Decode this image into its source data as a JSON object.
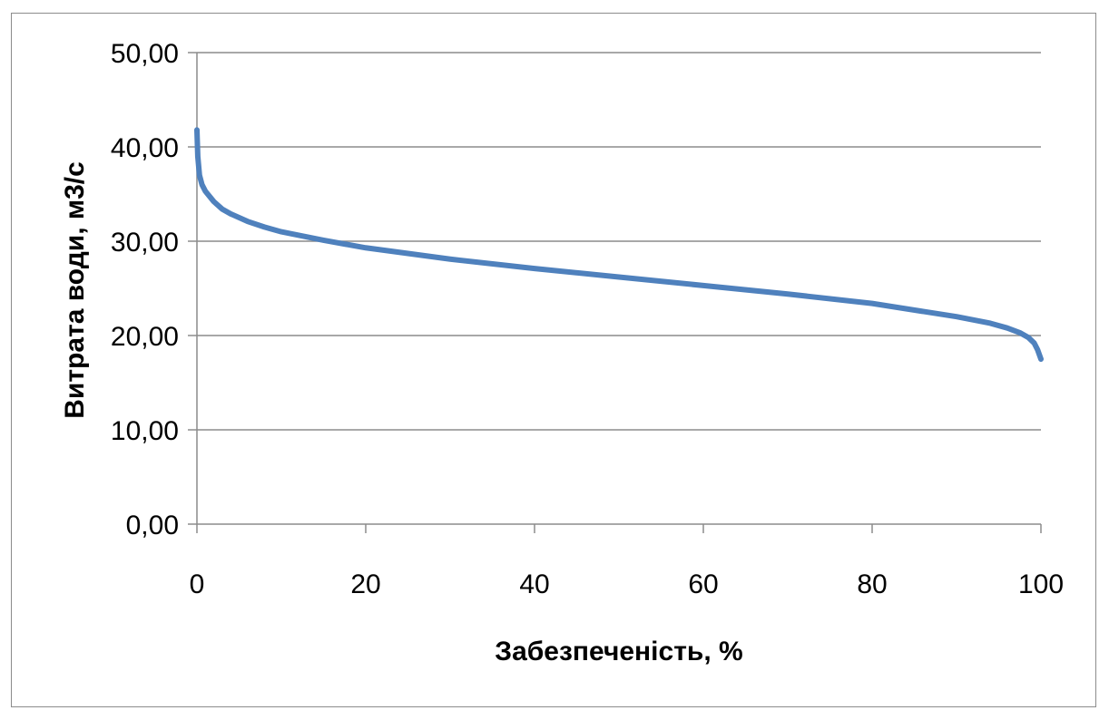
{
  "chart_data": {
    "type": "line",
    "title": "",
    "xlabel": "Забезпеченість, %",
    "ylabel": "Витрата води, м3/с",
    "xlim": [
      0,
      100
    ],
    "ylim": [
      0,
      50
    ],
    "x_ticks": [
      "0",
      "20",
      "40",
      "60",
      "80",
      "100"
    ],
    "y_ticks": [
      "0,00",
      "10,00",
      "20,00",
      "30,00",
      "40,00",
      "50,00"
    ],
    "grid": "horizontal",
    "legend": "none",
    "series": [
      {
        "color": "#4f81bd",
        "x": [
          0,
          0.1,
          0.3,
          0.6,
          1,
          2,
          3,
          4,
          6,
          8,
          10,
          15,
          20,
          30,
          40,
          50,
          60,
          70,
          80,
          90,
          94,
          96,
          97.5,
          98.5,
          99.2,
          99.6,
          100
        ],
        "y": [
          41.8,
          39.0,
          37.0,
          36.0,
          35.3,
          34.2,
          33.4,
          32.9,
          32.1,
          31.5,
          31.0,
          30.1,
          29.3,
          28.1,
          27.1,
          26.2,
          25.3,
          24.4,
          23.4,
          22.0,
          21.3,
          20.8,
          20.3,
          19.8,
          19.2,
          18.5,
          17.5
        ]
      }
    ]
  }
}
